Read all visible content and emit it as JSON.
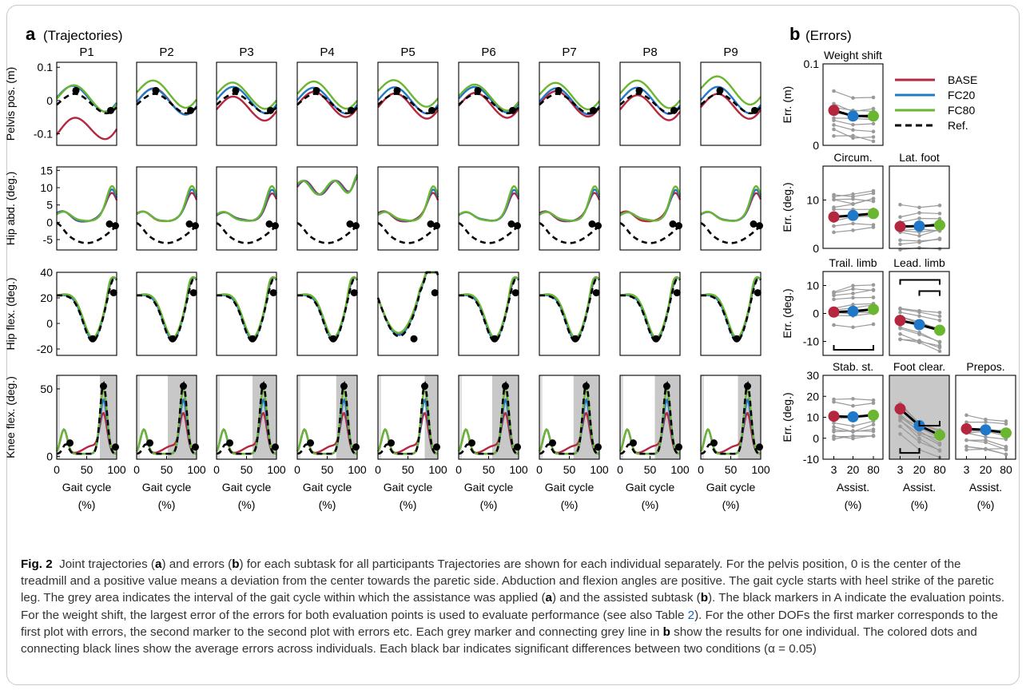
{
  "panel_a": {
    "letter": "a",
    "subtitle": "(Trajectories)"
  },
  "panel_b": {
    "letter": "b",
    "subtitle": "(Errors)"
  },
  "participants": [
    "P1",
    "P2",
    "P3",
    "P4",
    "P5",
    "P6",
    "P7",
    "P8",
    "P9"
  ],
  "rows": [
    {
      "ylabel": "Pelvis pos. (m)",
      "ticks": [
        "0.1",
        "0",
        "-0.1"
      ]
    },
    {
      "ylabel": "Hip abd. (deg.)",
      "ticks": [
        "15",
        "10",
        "5",
        "0",
        "-5"
      ]
    },
    {
      "ylabel": "Hip flex. (deg.)",
      "ticks": [
        "40",
        "20",
        "0",
        "-20"
      ]
    },
    {
      "ylabel": "Knee flex. (deg.)",
      "ticks": [
        "50",
        "0"
      ]
    }
  ],
  "x_ticks": [
    "0",
    "50",
    "100"
  ],
  "x_label": [
    "Gait cycle",
    "(%)"
  ],
  "legend": [
    {
      "label": "BASE",
      "color": "#b5263f"
    },
    {
      "label": "FC20",
      "color": "#1f78c8"
    },
    {
      "label": "FC80",
      "color": "#6bb631"
    },
    {
      "label": "Ref.",
      "color": "#000000"
    }
  ],
  "colors": {
    "base": "#b5263f",
    "fc20": "#1f78c8",
    "fc80": "#6bb631",
    "ref": "#000000",
    "individual": "#9a9a9a",
    "assist_shade": "#c8c8c8"
  },
  "error_panels": [
    {
      "title": "Weight shift",
      "ylabel": "Err. (m)",
      "ticks": [
        "0.1",
        "0"
      ]
    },
    {
      "title": "Circum.",
      "ylabel": "Err. (deg.)",
      "ticks": [
        "10",
        "0"
      ]
    },
    {
      "title": "Lat. foot",
      "ticks": []
    },
    {
      "title": "Trail. limb",
      "ylabel": "Err. (deg.)",
      "ticks": [
        "10",
        "0",
        "-10"
      ]
    },
    {
      "title": "Lead. limb",
      "ticks": []
    },
    {
      "title": "Stab. st.",
      "ylabel": "Err. (deg.)",
      "ticks": [
        "30",
        "20",
        "10",
        "0",
        "-10"
      ]
    },
    {
      "title": "Foot clear.",
      "ticks": []
    },
    {
      "title": "Prepos.",
      "ticks": []
    }
  ],
  "error_x_ticks": [
    "3",
    "20",
    "80"
  ],
  "error_x_label": [
    "Assist.",
    "(%)"
  ],
  "chart_data": {
    "type": "scatter",
    "conditions": [
      "3",
      "20",
      "80"
    ],
    "xlabel": "Assist. (%)",
    "series_names": [
      "BASE",
      "FC20",
      "FC80"
    ],
    "panels": [
      {
        "title": "Weight shift",
        "ylabel": "Err. (m)",
        "ylim": [
          0,
          0.1
        ],
        "means": [
          0.043,
          0.036,
          0.036
        ]
      },
      {
        "title": "Circum.",
        "ylabel": "Err. (deg.)",
        "ylim": [
          0,
          17
        ],
        "means": [
          6.5,
          6.8,
          7.2
        ]
      },
      {
        "title": "Lat. foot",
        "ylim": [
          0,
          17
        ],
        "means": [
          4.5,
          4.6,
          4.8
        ]
      },
      {
        "title": "Trail. limb",
        "ylabel": "Err. (deg.)",
        "ylim": [
          -15,
          15
        ],
        "means": [
          0.5,
          0.8,
          1.5
        ]
      },
      {
        "title": "Lead. limb",
        "ylim": [
          -15,
          15
        ],
        "means": [
          -2.5,
          -4,
          -6
        ]
      },
      {
        "title": "Stab. st.",
        "ylabel": "Err. (deg.)",
        "ylim": [
          -10,
          30
        ],
        "means": [
          10.5,
          10.2,
          11
        ]
      },
      {
        "title": "Foot clear.",
        "ylim": [
          -10,
          30
        ],
        "means": [
          14,
          6,
          1.5
        ]
      },
      {
        "title": "Prepos.",
        "ylim": [
          -10,
          30
        ],
        "means": [
          4.5,
          4,
          2.5
        ]
      }
    ]
  },
  "caption": {
    "label": "Fig. 2",
    "p1": "Joint trajectories (",
    "a1": "a",
    "p2": ") and errors (",
    "b1": "b",
    "p3": ") for each subtask for all participants Trajectories are shown for each individual separately. For the pelvis position, 0 is the center of the treadmill and a positive value means a deviation from the center towards the paretic side. Abduction and flexion angles are positive. The gait cycle starts with heel strike of the paretic leg. The grey area indicates the interval of the gait cycle within which the assistance was applied (",
    "a2": "a",
    "p4": ") and the assisted subtask (",
    "b2": "b",
    "p5": "). The black markers in A indicate the evaluation points. For the weight shift, the largest error of the errors for both evaluation points is used to evaluate performance (see also Table ",
    "table_ref": "2",
    "p6": "). For the other DOFs the first marker corresponds to the first plot with errors, the second marker to the second plot with errors etc. Each grey marker and connecting grey line in ",
    "b3": "b",
    "p7": " show the results for one individual. The colored dots and connecting black lines show the average errors across individuals. Each black bar indicates significant differences between two conditions (α = 0.05)"
  }
}
